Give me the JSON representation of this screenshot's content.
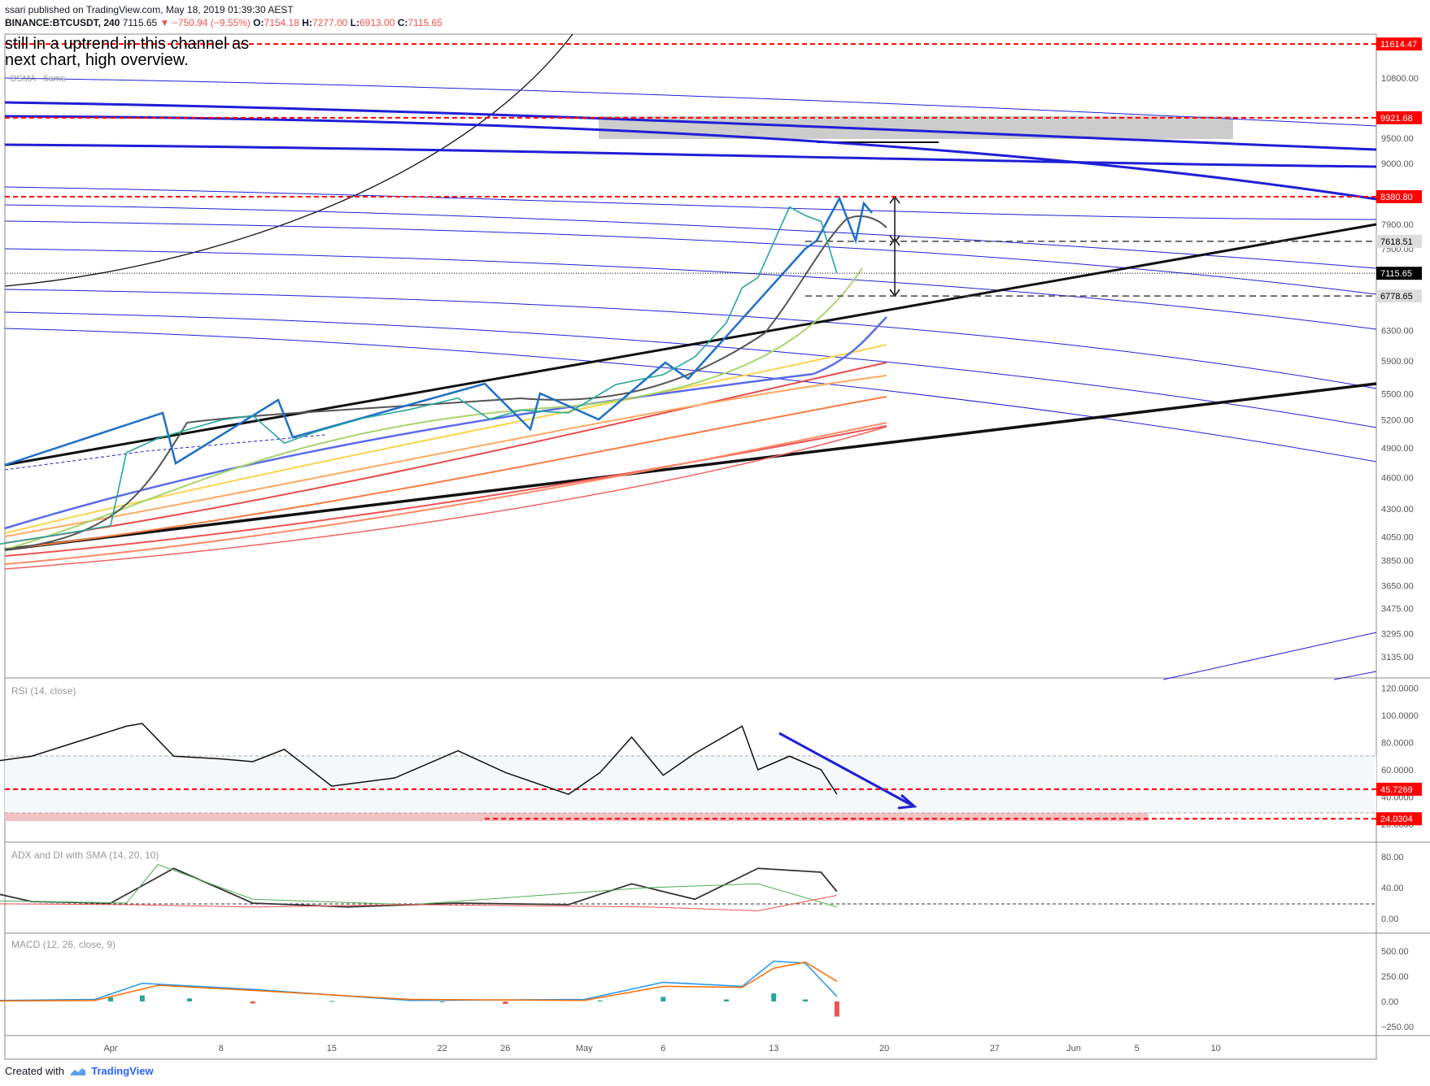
{
  "header": {
    "published": "ssari published on TradingView.com, May 18, 2019 01:39:30 AEST",
    "symbol": "BINANCE:BTCUSDT, 240",
    "last": "7115.65",
    "change": "▼ −750.94 (−9.55%)",
    "open_label": "O:",
    "open": "7154.18",
    "high_label": "H:",
    "high": "7277.00",
    "low_label": "L:",
    "low": "6913.00",
    "close_label": "C:",
    "close": "7115.65"
  },
  "annotation_text": "still in a uptrend in this channel as\nnext chart, high overview.",
  "overlay_label": "OSMA - 5ams",
  "footer": {
    "prefix": "Created with",
    "brand": "TradingView"
  },
  "colors": {
    "up": "#26a69a",
    "down": "#ef5350",
    "channel": "#1f1fd6",
    "marker": "#ff0000"
  },
  "chart_data": [
    {
      "type": "line",
      "panel": "price",
      "y_ticks": [
        10800.0,
        9500.0,
        9000.0,
        7900.0,
        7500.0,
        6300.0,
        5900.0,
        5500.0,
        5200.0,
        4900.0,
        4600.0,
        4300.0,
        4050.0,
        3850.0,
        3650.0,
        3475.0,
        3295.0,
        3135.0
      ],
      "y_tick_labels": [
        "10800.00",
        "9500.00",
        "9000.00",
        "7900.00",
        "7500.00",
        "6300.00",
        "5900.00",
        "5500.00",
        "5200.00",
        "4900.00",
        "4600.00",
        "4300.00",
        "4050.00",
        "3850.00",
        "3650.00",
        "3475.00",
        "3295.00",
        "3135.00"
      ],
      "price_markers": [
        {
          "value": 11614.47,
          "label": "11614.47",
          "style": "red-dashed"
        },
        {
          "value": 9921.68,
          "label": "9921.68",
          "style": "red-dashed"
        },
        {
          "value": 8380.8,
          "label": "8380.80",
          "style": "red-dashed"
        },
        {
          "value": 7618.51,
          "label": "7618.51",
          "style": "gray-dashed"
        },
        {
          "value": 7115.65,
          "label": "7115.65",
          "style": "last-price"
        },
        {
          "value": 6778.65,
          "label": "6778.65",
          "style": "gray-dashed"
        }
      ],
      "close_path": {
        "x": [
          "2019-03-19",
          "2019-03-25",
          "2019-03-30",
          "2019-04-01",
          "2019-04-02",
          "2019-04-04",
          "2019-04-06",
          "2019-04-08",
          "2019-04-10",
          "2019-04-12",
          "2019-04-14",
          "2019-04-17",
          "2019-04-20",
          "2019-04-23",
          "2019-04-25",
          "2019-04-27",
          "2019-04-30",
          "2019-05-03",
          "2019-05-06",
          "2019-05-08",
          "2019-05-10",
          "2019-05-11",
          "2019-05-12",
          "2019-05-14",
          "2019-05-15",
          "2019-05-16",
          "2019-05-17"
        ],
        "y": [
          3930,
          3990,
          4100,
          4150,
          4850,
          5000,
          5100,
          5200,
          5250,
          4950,
          5070,
          5220,
          5320,
          5450,
          5210,
          5310,
          5280,
          5610,
          5730,
          5950,
          6400,
          6900,
          7050,
          8200,
          8050,
          7950,
          7115.65
        ]
      },
      "x_ticks": [
        "Apr",
        "8",
        "15",
        "22",
        "26",
        "May",
        "6",
        "13",
        "20",
        "27",
        "Jun",
        "5",
        "10"
      ],
      "x_tick_dates": [
        "2019-04-01",
        "2019-04-08",
        "2019-04-15",
        "2019-04-22",
        "2019-04-26",
        "2019-05-01",
        "2019-05-06",
        "2019-05-13",
        "2019-05-20",
        "2019-05-27",
        "2019-06-01",
        "2019-06-05",
        "2019-06-10"
      ]
    },
    {
      "type": "line",
      "panel": "rsi",
      "title": "RSI (14, close)",
      "y_ticks": [
        120.0,
        100.0,
        80.0,
        60.0,
        40.0,
        20.0
      ],
      "y_tick_labels": [
        "120.0000",
        "100.0000",
        "80.0000",
        "60.0000",
        "40.0000",
        "20.0000"
      ],
      "price_markers": [
        {
          "value": 45.7269,
          "label": "45.7269",
          "style": "red-dashed"
        },
        {
          "value": 24.0304,
          "label": "24.0304",
          "style": "red-dashed"
        }
      ],
      "series": {
        "x": [
          "2019-03-19",
          "2019-03-22",
          "2019-03-27",
          "2019-04-02",
          "2019-04-03",
          "2019-04-05",
          "2019-04-08",
          "2019-04-10",
          "2019-04-12",
          "2019-04-15",
          "2019-04-19",
          "2019-04-23",
          "2019-04-26",
          "2019-04-30",
          "2019-05-02",
          "2019-05-04",
          "2019-05-06",
          "2019-05-08",
          "2019-05-11",
          "2019-05-12",
          "2019-05-14",
          "2019-05-16",
          "2019-05-17"
        ],
        "y": [
          40,
          62,
          70,
          92,
          94,
          70,
          68,
          66,
          75,
          48,
          54,
          74,
          58,
          42,
          58,
          84,
          56,
          72,
          92,
          60,
          70,
          60,
          42
        ]
      }
    },
    {
      "type": "line",
      "panel": "adx",
      "title": "ADX and DI with SMA (14, 20, 10)",
      "y_ticks": [
        80.0,
        40.0,
        0.0
      ],
      "y_tick_labels": [
        "80.00",
        "40.00",
        "0.00"
      ],
      "series": [
        {
          "x": [
            "2019-03-19",
            "2019-03-22",
            "2019-03-27",
            "2019-04-01",
            "2019-04-05",
            "2019-04-10",
            "2019-04-16",
            "2019-04-23",
            "2019-04-30",
            "2019-05-04",
            "2019-05-08",
            "2019-05-12",
            "2019-05-16",
            "2019-05-17"
          ],
          "y": [
            30,
            45,
            22,
            20,
            65,
            20,
            15,
            20,
            18,
            45,
            25,
            65,
            60,
            35
          ]
        },
        {
          "x": [
            "2019-03-19",
            "2019-04-02",
            "2019-04-04",
            "2019-04-10",
            "2019-04-20",
            "2019-05-05",
            "2019-05-12",
            "2019-05-17"
          ],
          "y": [
            25,
            20,
            70,
            25,
            18,
            40,
            45,
            15
          ]
        },
        {
          "x": [
            "2019-03-19",
            "2019-04-02",
            "2019-04-10",
            "2019-04-20",
            "2019-05-05",
            "2019-05-12",
            "2019-05-17"
          ],
          "y": [
            20,
            18,
            15,
            18,
            15,
            10,
            30
          ]
        }
      ]
    },
    {
      "type": "bar",
      "panel": "macd",
      "title": "MACD (12, 26, close, 9)",
      "y_ticks": [
        500.0,
        250.0,
        0.0,
        -250.0
      ],
      "y_tick_labels": [
        "500.00",
        "250.00",
        "0.00",
        "−250.00"
      ],
      "series": [
        {
          "x": [
            "2019-03-19",
            "2019-03-31",
            "2019-04-03",
            "2019-04-10",
            "2019-04-20",
            "2019-05-01",
            "2019-05-06",
            "2019-05-11",
            "2019-05-13",
            "2019-05-15",
            "2019-05-17"
          ],
          "y": [
            0,
            20,
            180,
            120,
            10,
            20,
            190,
            150,
            400,
            380,
            50
          ]
        },
        {
          "x": [
            "2019-03-19",
            "2019-03-31",
            "2019-04-04",
            "2019-04-10",
            "2019-04-20",
            "2019-05-01",
            "2019-05-06",
            "2019-05-11",
            "2019-05-13",
            "2019-05-15",
            "2019-05-17"
          ],
          "y": [
            0,
            10,
            160,
            110,
            20,
            10,
            150,
            140,
            330,
            390,
            200
          ]
        }
      ],
      "histogram": {
        "x": [
          "2019-04-01",
          "2019-04-03",
          "2019-04-06",
          "2019-04-10",
          "2019-04-15",
          "2019-04-22",
          "2019-04-26",
          "2019-05-02",
          "2019-05-06",
          "2019-05-10",
          "2019-05-13",
          "2019-05-15",
          "2019-05-17"
        ],
        "y": [
          40,
          60,
          30,
          -20,
          5,
          0,
          -25,
          10,
          45,
          20,
          80,
          20,
          -150
        ]
      }
    }
  ]
}
